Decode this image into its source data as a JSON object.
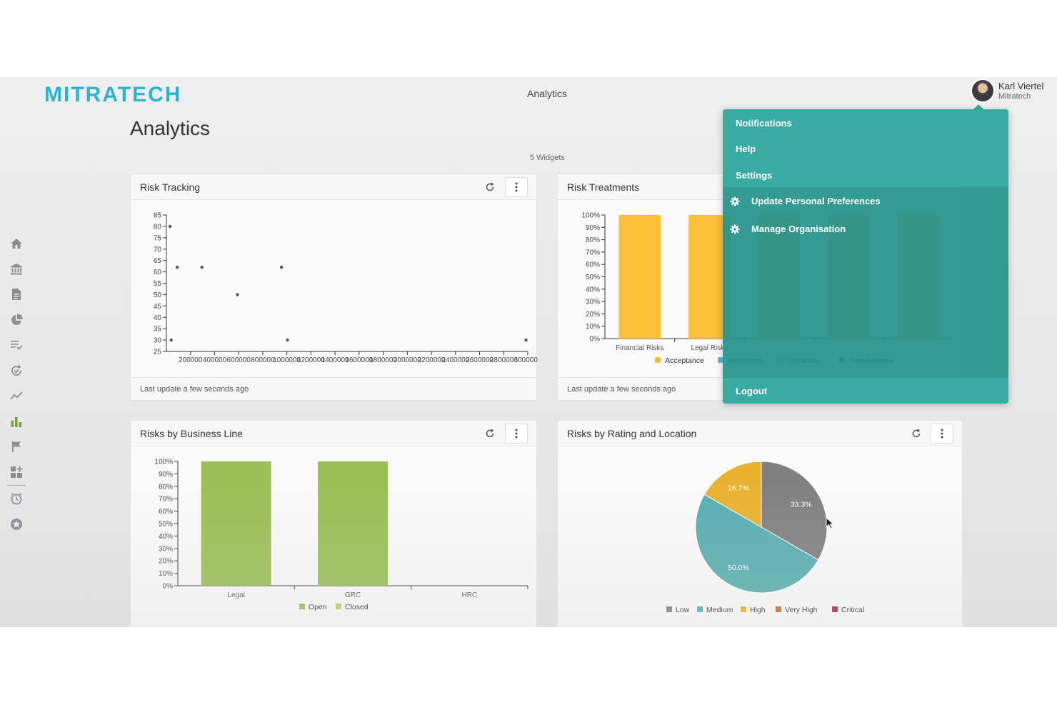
{
  "header": {
    "logo": "MITRATECH",
    "title": "Analytics"
  },
  "user": {
    "name": "Karl Viertel",
    "org": "Mitratech"
  },
  "page": {
    "title": "Analytics",
    "widget_count": "5 Widgets"
  },
  "sidebar": {
    "icons": [
      "home-icon",
      "bank-icon",
      "document-icon",
      "pie-chart-icon",
      "checklist-icon",
      "sync-check-icon",
      "trend-line-icon",
      "bar-chart-icon",
      "flag-icon",
      "dashboard-add-icon",
      "alarm-icon",
      "star-badge-icon"
    ]
  },
  "dropdown": {
    "items": [
      "Notifications",
      "Help",
      "Settings"
    ],
    "settings_items": [
      "Update Personal Preferences",
      "Manage Organisation"
    ],
    "logout": "Logout"
  },
  "widgets": {
    "risk_tracking": {
      "title": "Risk Tracking",
      "footer": "Last update a few seconds ago"
    },
    "risk_treatments": {
      "title": "Risk Treatments",
      "footer": "Last update a few seconds ago"
    },
    "risks_business": {
      "title": "Risks by Business Line"
    },
    "risks_rating": {
      "title": "Risks by Rating and Location"
    }
  },
  "chart_data": [
    {
      "type": "scatter",
      "title": "Risk Tracking",
      "ylim": [
        25,
        85
      ],
      "y_ticks": [
        "85",
        "80",
        "75",
        "70",
        "65",
        "60",
        "55",
        "50",
        "45",
        "40",
        "35",
        "30",
        "25"
      ],
      "x_ticks": [
        "200000",
        "400000",
        "600000",
        "800000",
        "1000000",
        "1200000",
        "1400000",
        "1600000",
        "1800000",
        "2000000",
        "2200000",
        "2400000",
        "2600000",
        "2800000",
        "3000000"
      ],
      "xlim": [
        0,
        3000000
      ],
      "points": [
        {
          "x": 30000,
          "y": 80
        },
        {
          "x": 90000,
          "y": 62
        },
        {
          "x": 295000,
          "y": 62
        },
        {
          "x": 590000,
          "y": 50
        },
        {
          "x": 955000,
          "y": 62
        },
        {
          "x": 40000,
          "y": 30
        },
        {
          "x": 1005000,
          "y": 30
        },
        {
          "x": 2985000,
          "y": 30
        }
      ]
    },
    {
      "type": "bar",
      "title": "Risk Treatments",
      "y_ticks": [
        "100%",
        "90%",
        "80%",
        "70%",
        "60%",
        "50%",
        "40%",
        "30%",
        "20%",
        "10%",
        "0%"
      ],
      "categories": [
        "Financial Risks",
        "Legal Risks",
        "",
        "",
        ""
      ],
      "series": [
        {
          "name": "Acceptance",
          "color": "#fbbf38",
          "values": [
            100,
            100,
            100,
            100,
            100
          ]
        },
        {
          "name": "Avoidance",
          "color": "#56c1c9",
          "values": [
            0,
            0,
            0,
            0,
            0
          ]
        },
        {
          "name": "Limitation",
          "color": "#bdbdbd",
          "values": [
            0,
            0,
            0,
            0,
            0
          ]
        },
        {
          "name": "Transference",
          "color": "#8d8d8d",
          "values": [
            0,
            0,
            0,
            0,
            0
          ]
        }
      ],
      "legend": [
        "Acceptance",
        "Avoidance",
        "Limitation",
        "Transference"
      ]
    },
    {
      "type": "bar",
      "title": "Risks by Business Line",
      "y_ticks": [
        "100%",
        "90%",
        "80%",
        "70%",
        "60%",
        "50%",
        "40%",
        "30%",
        "20%",
        "10%",
        "0%"
      ],
      "categories": [
        "Legal",
        "GRC",
        "HRC"
      ],
      "series": [
        {
          "name": "Open",
          "color": "#9bbf54",
          "values": [
            100,
            100,
            0
          ]
        },
        {
          "name": "Closed",
          "color": "#c7cc4d",
          "values": [
            0,
            0,
            0
          ]
        }
      ],
      "legend": [
        "Open",
        "Closed"
      ]
    },
    {
      "type": "pie",
      "title": "Risks by Rating and Location",
      "slices": [
        {
          "label": "Low",
          "value": 33.3,
          "text": "33.3%",
          "color": "#808080"
        },
        {
          "label": "Medium",
          "value": 50.0,
          "text": "50.0%",
          "color": "#58aeb1"
        },
        {
          "label": "High",
          "value": 16.7,
          "text": "16.7%",
          "color": "#e8b22f"
        }
      ],
      "legend": [
        {
          "label": "Low",
          "color": "#808080"
        },
        {
          "label": "Medium",
          "color": "#58aeb1"
        },
        {
          "label": "High",
          "color": "#e8b22f"
        },
        {
          "label": "Very High",
          "color": "#d46a2b"
        },
        {
          "label": "Critical",
          "color": "#b0243c"
        }
      ]
    }
  ]
}
